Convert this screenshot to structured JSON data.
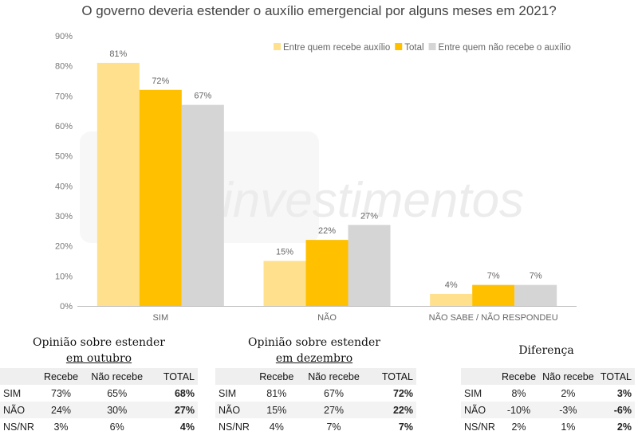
{
  "chart_data": {
    "type": "bar",
    "title": "O governo deveria estender o auxílio emergencial por alguns meses em 2021?",
    "categories": [
      "SIM",
      "NÃO",
      "NÃO SABE / NÃO RESPONDEU"
    ],
    "series": [
      {
        "name": "Entre quem recebe auxílio",
        "values": [
          81,
          15,
          4
        ],
        "labels": [
          "81%",
          "15%",
          "4%"
        ],
        "color": "#FFE08C"
      },
      {
        "name": "Total",
        "values": [
          72,
          22,
          7
        ],
        "labels": [
          "72%",
          "22%",
          "7%"
        ],
        "color": "#FFC000"
      },
      {
        "name": "Entre quem não recebe o auxílio",
        "values": [
          67,
          27,
          7
        ],
        "labels": [
          "67%",
          "27%",
          "7%"
        ],
        "color": "#D5D5D5"
      }
    ],
    "ylim": [
      0,
      90
    ],
    "yticks": [
      "0%",
      "10%",
      "20%",
      "30%",
      "40%",
      "50%",
      "60%",
      "70%",
      "80%",
      "90%"
    ],
    "xlabel": "",
    "ylabel": "",
    "grid": false,
    "legend_position": "top-right",
    "watermark": "investimentos"
  },
  "tables": [
    {
      "title_line1": "Opinião sobre estender",
      "title_line2": "em outubro",
      "headers": [
        "",
        "Recebe",
        "Não recebe",
        "TOTAL"
      ],
      "rows": [
        [
          "SIM",
          "73%",
          "65%",
          "68%"
        ],
        [
          "NÃO",
          "24%",
          "30%",
          "27%"
        ],
        [
          "NS/NR",
          "3%",
          "6%",
          "4%"
        ]
      ]
    },
    {
      "title_line1": "Opinião sobre estender",
      "title_line2": "em dezembro",
      "headers": [
        "",
        "Recebe",
        "Não recebe",
        "TOTAL"
      ],
      "rows": [
        [
          "SIM",
          "81%",
          "67%",
          "72%"
        ],
        [
          "NÃO",
          "15%",
          "27%",
          "22%"
        ],
        [
          "NS/NR",
          "4%",
          "7%",
          "7%"
        ]
      ]
    },
    {
      "title_line1": "Diferença",
      "title_line2": "",
      "headers": [
        "",
        "Recebe",
        "Não recebe",
        "TOTAL"
      ],
      "rows": [
        [
          "SIM",
          "8%",
          "2%",
          "3%"
        ],
        [
          "NÃO",
          "-10%",
          "-3%",
          "-6%"
        ],
        [
          "NS/NR",
          "2%",
          "1%",
          "2%"
        ]
      ]
    }
  ]
}
